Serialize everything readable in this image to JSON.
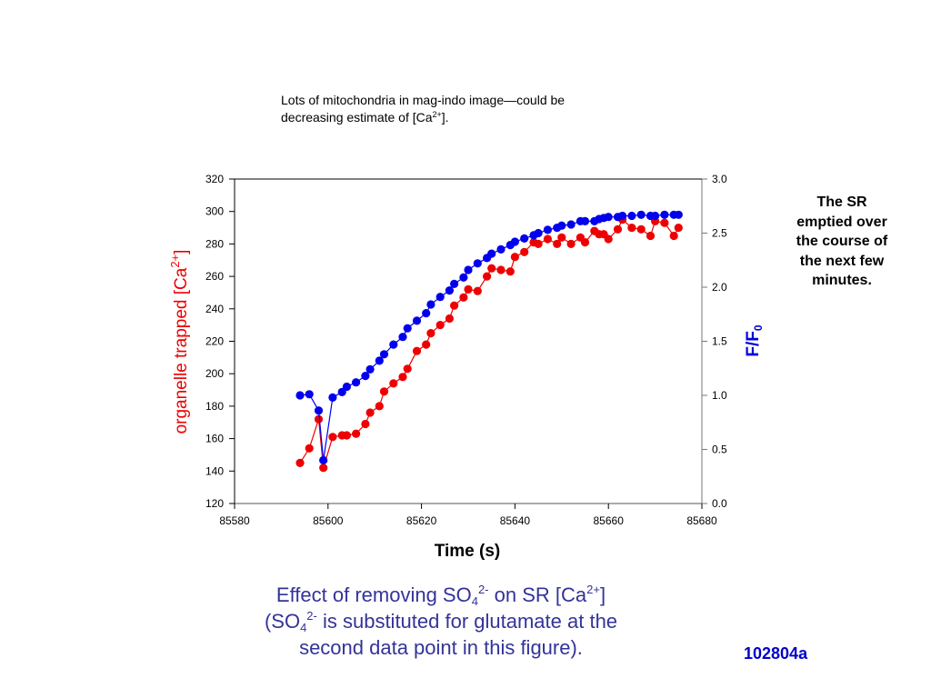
{
  "top_note": {
    "line1": "Lots of mitochondria in mag-indo image—could be",
    "line2_prefix": "decreasing estimate of [Ca",
    "line2_sup": "2+",
    "line2_suffix": "]."
  },
  "side_note": {
    "lines": [
      "The SR",
      "emptied over",
      "the course of",
      "the next few",
      "minutes."
    ]
  },
  "caption": {
    "l1_a": "Effect of removing SO",
    "l1_sub": "4",
    "l1_sup": "2-",
    "l1_b": " on SR [Ca",
    "l1_sup2": "2+",
    "l1_c": "]",
    "l2_a": "(SO",
    "l2_sub": "4",
    "l2_sup": "2-",
    "l2_b": " is substituted for glutamate at the",
    "l3": "second data point in this figure)."
  },
  "figure_id": "102804a",
  "colors": {
    "left_series": "#ee0000",
    "right_series": "#0000ee",
    "caption": "#333399",
    "figure_id": "#0000cc"
  },
  "chart_data": {
    "type": "line",
    "title": "",
    "xlabel": "Time (s)",
    "ylabel_left": {
      "prefix": "organelle trapped [Ca",
      "sup": "2+",
      "suffix": "]"
    },
    "ylabel_right": {
      "prefix": "F/F",
      "sub": "0"
    },
    "xlim": [
      85580,
      85680
    ],
    "ylim_left": [
      120,
      320
    ],
    "ylim_right": [
      0.0,
      3.0
    ],
    "x_ticks": [
      "85580",
      "85600",
      "85620",
      "85640",
      "85660",
      "85680"
    ],
    "y_ticks_left": [
      "120",
      "140",
      "160",
      "180",
      "200",
      "220",
      "240",
      "260",
      "280",
      "300",
      "320"
    ],
    "y_ticks_right": [
      "0.0",
      "0.5",
      "1.0",
      "1.5",
      "2.0",
      "2.5",
      "3.0"
    ],
    "grid": false,
    "x": [
      85594,
      85596,
      85598,
      85599,
      85601,
      85603,
      85604,
      85606,
      85608,
      85609,
      85611,
      85612,
      85614,
      85616,
      85617,
      85619,
      85621,
      85622,
      85624,
      85626,
      85627,
      85629,
      85630,
      85632,
      85634,
      85635,
      85637,
      85639,
      85640,
      85642,
      85644,
      85645,
      85647,
      85649,
      85650,
      85652,
      85654,
      85655,
      85657,
      85658,
      85659,
      85660,
      85662,
      85663,
      85665,
      85667,
      85669,
      85670,
      85672,
      85674,
      85675
    ],
    "series": [
      {
        "name": "organelle trapped [Ca2+]",
        "axis": "left",
        "color": "#ee0000",
        "values": [
          145,
          154,
          172,
          142,
          161,
          162,
          162,
          163,
          169,
          176,
          180,
          189,
          194,
          198,
          203,
          214,
          218,
          225,
          230,
          234,
          242,
          247,
          252,
          251,
          260,
          265,
          264,
          263,
          272,
          275,
          281,
          280,
          283,
          280,
          284,
          280,
          284,
          281,
          288,
          286,
          286,
          283,
          289,
          295,
          290,
          289,
          285,
          294,
          293,
          285,
          290
        ]
      },
      {
        "name": "F/F0",
        "axis": "right",
        "color": "#0000ee",
        "values": [
          1.0,
          1.01,
          0.86,
          0.4,
          0.98,
          1.03,
          1.08,
          1.12,
          1.18,
          1.24,
          1.32,
          1.38,
          1.47,
          1.54,
          1.62,
          1.69,
          1.76,
          1.84,
          1.91,
          1.97,
          2.03,
          2.09,
          2.16,
          2.22,
          2.27,
          2.31,
          2.35,
          2.39,
          2.42,
          2.45,
          2.48,
          2.5,
          2.53,
          2.55,
          2.57,
          2.58,
          2.61,
          2.61,
          2.61,
          2.63,
          2.64,
          2.65,
          2.65,
          2.66,
          2.66,
          2.67,
          2.66,
          2.66,
          2.67,
          2.67,
          2.67
        ]
      }
    ]
  }
}
